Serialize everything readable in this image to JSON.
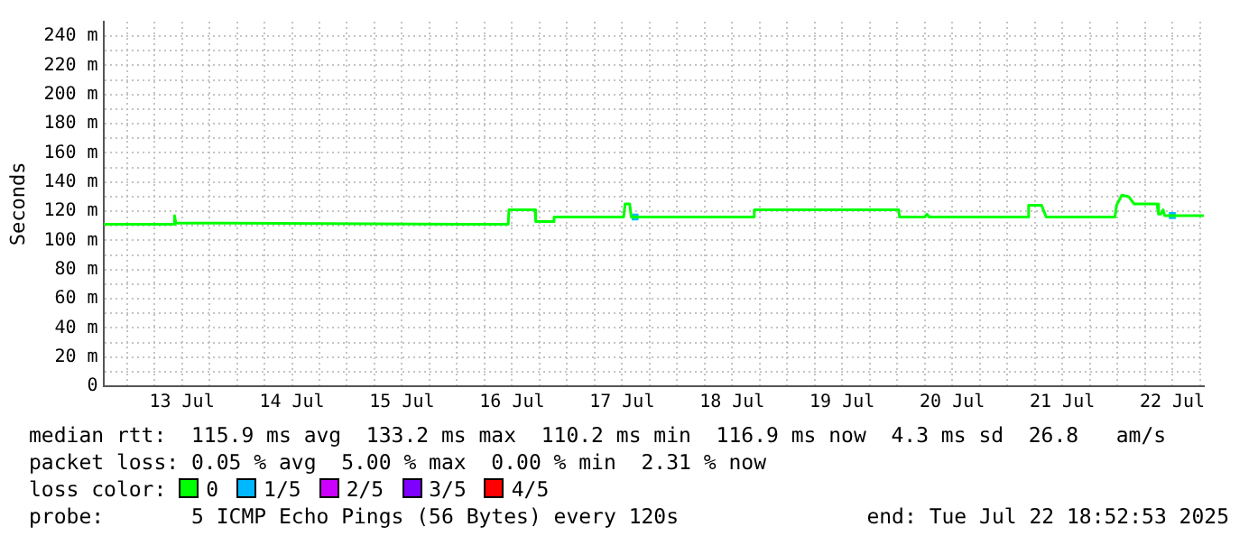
{
  "chart_data": {
    "type": "line",
    "ylabel": "Seconds",
    "xlim": [
      "2025-07-12T18:53",
      "2025-07-22T18:53"
    ],
    "xticks": [
      {
        "value": "2025-07-13T00:00",
        "label": null
      },
      {
        "value": "2025-07-13T06:00",
        "label": null
      },
      {
        "value": "2025-07-13T12:00",
        "label": "13 Jul"
      },
      {
        "value": "2025-07-13T18:00",
        "label": null
      },
      {
        "value": "2025-07-14T00:00",
        "label": null
      },
      {
        "value": "2025-07-14T06:00",
        "label": null
      },
      {
        "value": "2025-07-14T12:00",
        "label": "14 Jul"
      },
      {
        "value": "2025-07-14T18:00",
        "label": null
      },
      {
        "value": "2025-07-15T00:00",
        "label": null
      },
      {
        "value": "2025-07-15T06:00",
        "label": null
      },
      {
        "value": "2025-07-15T12:00",
        "label": "15 Jul"
      },
      {
        "value": "2025-07-15T18:00",
        "label": null
      },
      {
        "value": "2025-07-16T00:00",
        "label": null
      },
      {
        "value": "2025-07-16T06:00",
        "label": null
      },
      {
        "value": "2025-07-16T12:00",
        "label": "16 Jul"
      },
      {
        "value": "2025-07-16T18:00",
        "label": null
      },
      {
        "value": "2025-07-17T00:00",
        "label": null
      },
      {
        "value": "2025-07-17T06:00",
        "label": null
      },
      {
        "value": "2025-07-17T12:00",
        "label": "17 Jul"
      },
      {
        "value": "2025-07-17T18:00",
        "label": null
      },
      {
        "value": "2025-07-18T00:00",
        "label": null
      },
      {
        "value": "2025-07-18T06:00",
        "label": null
      },
      {
        "value": "2025-07-18T12:00",
        "label": "18 Jul"
      },
      {
        "value": "2025-07-18T18:00",
        "label": null
      },
      {
        "value": "2025-07-19T00:00",
        "label": null
      },
      {
        "value": "2025-07-19T06:00",
        "label": null
      },
      {
        "value": "2025-07-19T12:00",
        "label": "19 Jul"
      },
      {
        "value": "2025-07-19T18:00",
        "label": null
      },
      {
        "value": "2025-07-20T00:00",
        "label": null
      },
      {
        "value": "2025-07-20T06:00",
        "label": null
      },
      {
        "value": "2025-07-20T12:00",
        "label": "20 Jul"
      },
      {
        "value": "2025-07-20T18:00",
        "label": null
      },
      {
        "value": "2025-07-21T00:00",
        "label": null
      },
      {
        "value": "2025-07-21T06:00",
        "label": null
      },
      {
        "value": "2025-07-21T12:00",
        "label": "21 Jul"
      },
      {
        "value": "2025-07-21T18:00",
        "label": null
      },
      {
        "value": "2025-07-22T00:00",
        "label": null
      },
      {
        "value": "2025-07-22T06:00",
        "label": null
      },
      {
        "value": "2025-07-22T12:00",
        "label": "22 Jul"
      },
      {
        "value": "2025-07-22T18:00",
        "label": null
      }
    ],
    "ylim": [
      0,
      250
    ],
    "yticks": [
      0,
      {
        "value": 10,
        "label": null
      },
      {
        "value": 20,
        "label": "20 m"
      },
      {
        "value": 30,
        "label": null
      },
      {
        "value": 40,
        "label": "40 m"
      },
      {
        "value": 50,
        "label": null
      },
      {
        "value": 60,
        "label": "60 m"
      },
      {
        "value": 70,
        "label": null
      },
      {
        "value": 80,
        "label": "80 m"
      },
      {
        "value": 90,
        "label": null
      },
      {
        "value": 100,
        "label": "100 m"
      },
      {
        "value": 110,
        "label": null
      },
      {
        "value": 120,
        "label": "120 m"
      },
      {
        "value": 130,
        "label": null
      },
      {
        "value": 140,
        "label": "140 m"
      },
      {
        "value": 150,
        "label": null
      },
      {
        "value": 160,
        "label": "160 m"
      },
      {
        "value": 170,
        "label": null
      },
      {
        "value": 180,
        "label": "180 m"
      },
      {
        "value": 190,
        "label": null
      },
      {
        "value": 200,
        "label": "200 m"
      },
      {
        "value": 210,
        "label": null
      },
      {
        "value": 220,
        "label": "220 m"
      },
      {
        "value": 230,
        "label": null
      },
      {
        "value": 240,
        "label": "240 m"
      }
    ],
    "grid": true,
    "legend": "bottom",
    "legend_title": "loss color:",
    "series": [
      {
        "name": "0",
        "color": "#00ff00",
        "x": [
          "2025-07-12T18:53",
          "2025-07-13T10:20",
          "2025-07-13T10:24",
          "2025-07-13T10:40",
          "2025-07-16T11:10",
          "2025-07-16T11:20",
          "2025-07-16T17:00",
          "2025-07-16T17:10",
          "2025-07-16T21:00",
          "2025-07-16T21:10",
          "2025-07-17T12:20",
          "2025-07-17T12:40",
          "2025-07-17T13:40",
          "2025-07-17T14:00",
          "2025-07-18T16:40",
          "2025-07-18T16:50",
          "2025-07-20T00:20",
          "2025-07-20T00:30",
          "2025-07-20T06:00",
          "2025-07-20T06:30",
          "2025-07-20T07:00",
          "2025-07-21T04:20",
          "2025-07-21T04:40",
          "2025-07-21T07:30",
          "2025-07-21T08:30",
          "2025-07-21T23:30",
          "2025-07-21T23:50",
          "2025-07-22T01:00",
          "2025-07-22T02:30",
          "2025-07-22T03:40",
          "2025-07-22T08:40",
          "2025-07-22T09:00",
          "2025-07-22T09:30",
          "2025-07-22T10:00",
          "2025-07-22T10:20",
          "2025-07-22T18:52"
        ],
        "values": [
          111,
          111,
          117,
          112,
          111,
          121,
          121,
          113,
          113,
          116,
          116,
          125,
          125,
          116,
          116,
          121,
          121,
          116,
          116,
          118,
          116,
          116,
          124,
          124,
          116,
          116,
          124,
          131,
          130,
          125,
          125,
          118,
          118,
          121,
          117,
          117
        ]
      },
      {
        "name": "1/5",
        "color": "#00b8ff",
        "type": "scatter",
        "x": [
          "2025-07-17T14:50",
          "2025-07-22T12:00"
        ],
        "values": [
          116,
          117
        ]
      },
      {
        "name": "2/5",
        "color": "#cc00ff",
        "type": "scatter"
      },
      {
        "name": "3/5",
        "color": "#7e00ff",
        "type": "scatter"
      },
      {
        "name": "4/5",
        "color": "#ff0000",
        "type": "scatter"
      }
    ],
    "annotations": [
      "median rtt:  115.9 ms avg  133.2 ms max  110.2 ms min  116.9 ms now  4.3 ms sd  26.8   am/s",
      "packet loss: 0.05 % avg  5.00 % max  0.00 % min  2.31 % now",
      "probe:       5 ICMP Echo Pings (56 Bytes) every 120s",
      "end: Tue Jul 22 18:52:53 2025"
    ]
  }
}
